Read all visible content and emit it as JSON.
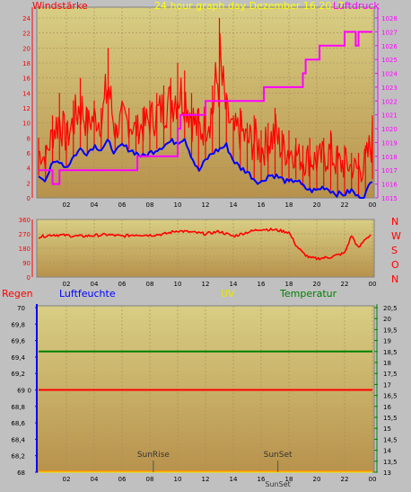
{
  "colors": {
    "page_bg": "#c0c0c0",
    "plot_top": "#d8ce84",
    "plot_bottom": "#b8924c",
    "grid": "#a48c5c",
    "wind": "#ff0000",
    "gust_fill": "#ff0000",
    "pressure": "#ff00ff",
    "humidity_title": "#0000ff",
    "rain": "#ff0000",
    "uv": "#e8e800",
    "temperature": "#008000",
    "direction": "#ff0000",
    "date_title": "#ffff00"
  },
  "header": {
    "left_label": "Windstärke",
    "title": "24 hour graph day   Dezember 16 2017",
    "right_label": "Luftdruck"
  },
  "compass": [
    "N",
    "W",
    "S",
    "O",
    "N"
  ],
  "lower_header": {
    "rain": "Regen",
    "humidity": "Luftfeuchte",
    "uv": "UV",
    "temperature": "Temperatur"
  },
  "sun": {
    "rise_label": "SunRise",
    "set_label": "SunSet",
    "bottom_label": "SunSet",
    "rise_hour": 8.25,
    "set_hour": 17.2
  },
  "chart_data": [
    {
      "type": "line",
      "name": "wind-and-pressure",
      "x_ticks": [
        "02",
        "04",
        "06",
        "08",
        "10",
        "12",
        "14",
        "16",
        "18",
        "20",
        "22",
        "00"
      ],
      "y_left": {
        "label": "Windstärke",
        "range": [
          0,
          24
        ],
        "ticks": [
          "0",
          "2",
          "4",
          "6",
          "8",
          "10",
          "12",
          "14",
          "16",
          "18",
          "20",
          "22",
          "24"
        ]
      },
      "y_right": {
        "label": "Luftdruck",
        "range": [
          1015,
          1028
        ],
        "ticks": [
          "1015",
          "1016",
          "1017",
          "1018",
          "1019",
          "1020",
          "1021",
          "1022",
          "1023",
          "1024",
          "1025",
          "1026",
          "1027",
          "1028"
        ]
      },
      "wind_avg": {
        "hours": [
          0,
          0.5,
          1,
          1.5,
          2,
          2.5,
          3,
          3.5,
          4,
          4.5,
          5,
          5.5,
          6,
          6.5,
          7,
          7.5,
          8,
          8.5,
          9,
          9.5,
          10,
          10.5,
          11,
          11.5,
          12,
          12.5,
          13,
          13.5,
          14,
          14.5,
          15,
          15.5,
          16,
          16.5,
          17,
          17.5,
          18,
          18.5,
          19,
          19.5,
          20,
          20.5,
          21,
          21.5,
          22,
          22.5,
          23,
          23.5,
          24
        ],
        "values": [
          3,
          2.5,
          4.5,
          5,
          4,
          5.5,
          6.5,
          6,
          7,
          6.5,
          7.5,
          6,
          7,
          6.5,
          6,
          5.5,
          6,
          6.5,
          7,
          7.5,
          7.5,
          8,
          5.5,
          3.5,
          5,
          6,
          6.5,
          7,
          5,
          4,
          3.5,
          2.5,
          2,
          3,
          3,
          2.5,
          2,
          2.5,
          1.5,
          1,
          1,
          1.5,
          1,
          0.5,
          0.5,
          1,
          0,
          0.5,
          2.5
        ]
      },
      "wind_gust": {
        "hours": [
          0,
          0.5,
          1,
          1.5,
          2,
          2.5,
          3,
          3.5,
          4,
          4.5,
          5,
          5.5,
          6,
          6.5,
          7,
          7.5,
          8,
          8.5,
          9,
          9.5,
          10,
          10.5,
          11,
          11.5,
          12,
          12.5,
          13,
          13.5,
          14,
          14.5,
          15,
          15.5,
          16,
          16.5,
          17,
          17.5,
          18,
          18.5,
          19,
          19.5,
          20,
          20.5,
          21,
          21.5,
          22,
          22.5,
          23,
          23.5,
          24
        ],
        "values": [
          8,
          7,
          11,
          14,
          10,
          13,
          16,
          12,
          13,
          12,
          20,
          10,
          13,
          12,
          11,
          12,
          13,
          14,
          15,
          16,
          18,
          17,
          14,
          12,
          13,
          15,
          24,
          14,
          11,
          12,
          10,
          11,
          9,
          10,
          12,
          9,
          9,
          8,
          7,
          8,
          7,
          8,
          9,
          7,
          7,
          6,
          6,
          7,
          11
        ]
      },
      "pressure": {
        "hours": [
          0,
          1,
          1.5,
          3,
          5,
          7,
          7.1,
          9,
          10,
          10.2,
          12,
          13,
          15,
          16,
          16.2,
          18,
          19,
          19.2,
          20,
          20.2,
          21,
          21.2,
          22,
          22.2,
          22.8,
          23,
          24
        ],
        "values": [
          1017,
          1016,
          1017,
          1017,
          1017,
          1017,
          1018,
          1018,
          1020,
          1021,
          1022,
          1022,
          1022,
          1022,
          1023,
          1023,
          1024,
          1025,
          1025,
          1026,
          1026,
          1026,
          1027,
          1027,
          1026,
          1027,
          1027
        ]
      }
    },
    {
      "type": "line",
      "name": "wind-direction",
      "x_ticks": [
        "02",
        "04",
        "06",
        "08",
        "10",
        "12",
        "14",
        "16",
        "18",
        "20",
        "22",
        "00"
      ],
      "y": {
        "range": [
          0,
          360
        ],
        "ticks": [
          "360",
          "270",
          "180",
          "90",
          "0"
        ]
      },
      "series": {
        "hours": [
          0,
          1,
          2,
          3,
          4,
          5,
          6,
          7,
          8,
          9,
          10,
          11,
          12,
          13,
          14,
          15,
          16,
          17,
          18,
          18.5,
          19,
          19.5,
          20,
          21,
          22,
          22.5,
          23,
          23.5,
          24
        ],
        "values": [
          250,
          265,
          260,
          255,
          260,
          265,
          255,
          265,
          262,
          268,
          290,
          280,
          270,
          285,
          255,
          280,
          300,
          295,
          280,
          200,
          150,
          120,
          115,
          125,
          150,
          260,
          180,
          240,
          270
        ]
      }
    },
    {
      "type": "line",
      "name": "rain-humidity-uv-temperature",
      "x_ticks": [
        "02",
        "04",
        "06",
        "08",
        "10",
        "12",
        "14",
        "16",
        "18",
        "20",
        "22",
        "00"
      ],
      "y_left": {
        "label": "Luftfeuchte",
        "range": [
          68,
          70
        ],
        "ticks": [
          "70",
          "69,8",
          "69,6",
          "69,4",
          "69,2",
          "69",
          "68,8",
          "68,6",
          "68,4",
          "68,2",
          "68"
        ]
      },
      "y_right": {
        "label": "Temperatur",
        "range": [
          13,
          20.5
        ],
        "ticks": [
          "20,5",
          "20",
          "19,5",
          "19",
          "18,5",
          "18",
          "17,5",
          "17",
          "16,5",
          "16",
          "15,5",
          "15",
          "14,5",
          "14",
          "13,5",
          "13"
        ]
      },
      "rain": {
        "label": "Regen",
        "value": 0,
        "tick_label": "0"
      },
      "temperature": {
        "value": 18.5
      },
      "humidity": {
        "value": 68
      },
      "uv": {
        "value": 0
      }
    }
  ]
}
